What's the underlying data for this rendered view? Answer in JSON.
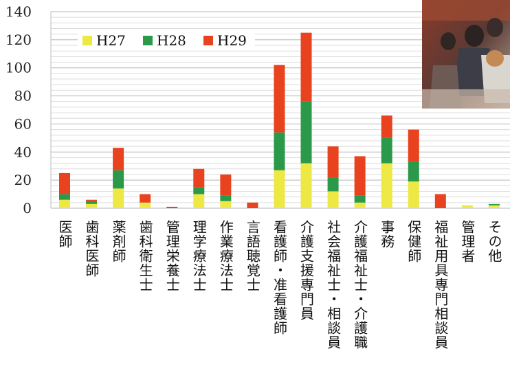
{
  "chart_data": {
    "type": "bar",
    "stacked": true,
    "categories": [
      "医師",
      "歯科医師",
      "薬剤師",
      "歯科衛生士",
      "管理栄養士",
      "理学療法士",
      "作業療法士",
      "言語聴覚士",
      "看護師・准看護師",
      "介護支援専門員",
      "社会福祉士・相談員",
      "介護福祉士・介護職",
      "事務",
      "保健師",
      "福祉用具専門相談員",
      "管理者",
      "その他"
    ],
    "series": [
      {
        "name": "H27",
        "color": "#ede844",
        "values": [
          6,
          3,
          14,
          4,
          0,
          10,
          5,
          0,
          27,
          32,
          12,
          4,
          32,
          19,
          0,
          2,
          2
        ]
      },
      {
        "name": "H28",
        "color": "#2a9a4a",
        "values": [
          4,
          2,
          13,
          0,
          0,
          5,
          4,
          0,
          27,
          44,
          10,
          5,
          18,
          14,
          0,
          0,
          1
        ]
      },
      {
        "name": "H29",
        "color": "#e8421e",
        "values": [
          15,
          1,
          16,
          6,
          1,
          13,
          15,
          4,
          48,
          49,
          22,
          28,
          16,
          23,
          10,
          0,
          0
        ]
      }
    ],
    "ylim": [
      0,
      140
    ],
    "yticks": [
      0,
      20,
      40,
      60,
      80,
      100,
      120,
      140
    ],
    "grid": true,
    "legend_position": "top-left",
    "photo": "inset-photo-top-right"
  }
}
